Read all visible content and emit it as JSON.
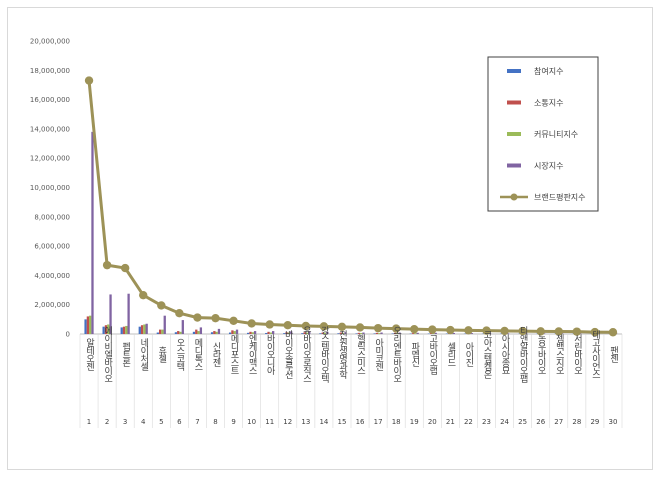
{
  "chart_data": {
    "type": "bar",
    "title": "",
    "xlabel": "",
    "ylabel": "",
    "ylim": [
      0,
      20000000
    ],
    "yticks": [
      "0",
      "2,000,000",
      "4,000,000",
      "6,000,000",
      "8,000,000",
      "10,000,000",
      "12,000,000",
      "14,000,000",
      "16,000,000",
      "18,000,000",
      "20,000,000"
    ],
    "grid": false,
    "legend_position": "right",
    "indices": [
      "1",
      "2",
      "3",
      "4",
      "5",
      "6",
      "7",
      "8",
      "9",
      "10",
      "11",
      "12",
      "13",
      "14",
      "15",
      "16",
      "17",
      "18",
      "19",
      "20",
      "21",
      "22",
      "23",
      "24",
      "25",
      "26",
      "27",
      "28",
      "29",
      "30"
    ],
    "categories": [
      "알테오젠",
      "에이비엘바이오",
      "펩트론",
      "네이처셀",
      "휴젤",
      "오스코텍",
      "메디톡스",
      "신라젠",
      "메디포스트",
      "엔케이맥스",
      "바이오니아",
      "바이오솔루션",
      "유바이오로직스",
      "강스템바이오텍",
      "진원생명과학",
      "헬릭스미스",
      "아미코젠",
      "오리엔트바이오",
      "파멥신",
      "고바이오랩",
      "셀리드",
      "아이진",
      "코아스템켐온",
      "아시아종묘",
      "티앤알바이오팹",
      "농우바이오",
      "젬백스지오",
      "서린바이오",
      "테고사이언스",
      "팬젠"
    ],
    "series": [
      {
        "name": "참여지수",
        "type": "bar",
        "color": "#4472c4",
        "values": [
          1000000,
          500000,
          450000,
          500000,
          100000,
          120000,
          150000,
          120000,
          100000,
          80000,
          70000,
          60000,
          60000,
          50000,
          50000,
          40000,
          40000,
          40000,
          30000,
          30000,
          30000,
          25000,
          25000,
          25000,
          20000,
          20000,
          20000,
          20000,
          15000,
          15000
        ]
      },
      {
        "name": "소통지수",
        "type": "bar",
        "color": "#c0504d",
        "values": [
          1200000,
          600000,
          500000,
          600000,
          300000,
          200000,
          300000,
          200000,
          250000,
          150000,
          150000,
          120000,
          120000,
          100000,
          100000,
          80000,
          80000,
          80000,
          60000,
          60000,
          50000,
          50000,
          50000,
          40000,
          40000,
          40000,
          40000,
          30000,
          30000,
          30000
        ]
      },
      {
        "name": "커뮤니티지수",
        "type": "bar",
        "color": "#9bbb59",
        "values": [
          1250000,
          650000,
          550000,
          650000,
          300000,
          150000,
          200000,
          150000,
          200000,
          120000,
          100000,
          100000,
          90000,
          80000,
          80000,
          70000,
          60000,
          60000,
          50000,
          50000,
          40000,
          40000,
          40000,
          35000,
          30000,
          30000,
          30000,
          25000,
          25000,
          25000
        ]
      },
      {
        "name": "시장지수",
        "type": "bar",
        "color": "#8064a2",
        "values": [
          13800000,
          2700000,
          2750000,
          700000,
          1250000,
          950000,
          450000,
          350000,
          300000,
          200000,
          200000,
          180000,
          150000,
          150000,
          120000,
          100000,
          100000,
          100000,
          80000,
          80000,
          70000,
          60000,
          60000,
          50000,
          50000,
          40000,
          40000,
          40000,
          30000,
          30000
        ]
      },
      {
        "name": "브랜드평판지수",
        "type": "line",
        "color": "#9d9257",
        "values": [
          17300000,
          4700000,
          4500000,
          2650000,
          1950000,
          1420000,
          1120000,
          1080000,
          900000,
          720000,
          650000,
          600000,
          550000,
          520000,
          490000,
          450000,
          400000,
          370000,
          330000,
          300000,
          270000,
          250000,
          230000,
          210000,
          200000,
          180000,
          170000,
          160000,
          130000,
          120000
        ]
      }
    ]
  }
}
